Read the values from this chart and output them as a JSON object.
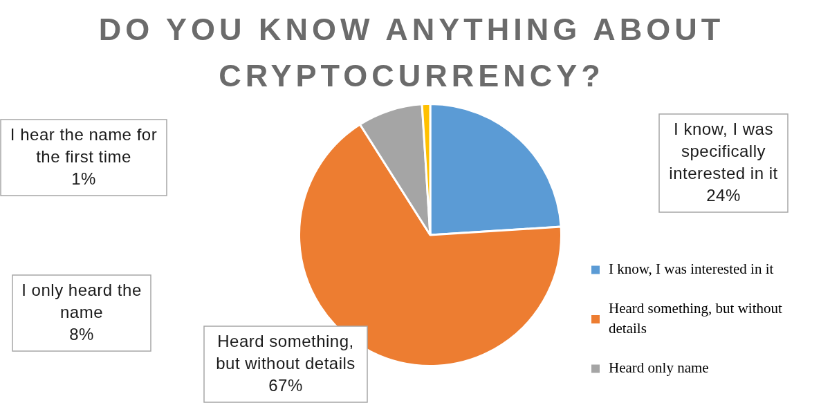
{
  "chart_data": {
    "type": "pie",
    "title": "DO YOU KNOW ANYTHING ABOUT CRYPTOCURRENCY?",
    "categories": [
      "I know, I was interested in it",
      "Heard something, but without details",
      "Heard only name",
      null
    ],
    "values": [
      24,
      67,
      8,
      1
    ],
    "colors": [
      "#5b9bd5",
      "#ed7d31",
      "#a5a5a5",
      "#ffc000"
    ],
    "annotations": [
      "I know, I was specifically interested in it\n24%",
      "Heard something, but without details\n67%",
      "I only heard the name\n8%",
      "I hear the name for the first time\n1%"
    ],
    "legend": "bottom right"
  }
}
